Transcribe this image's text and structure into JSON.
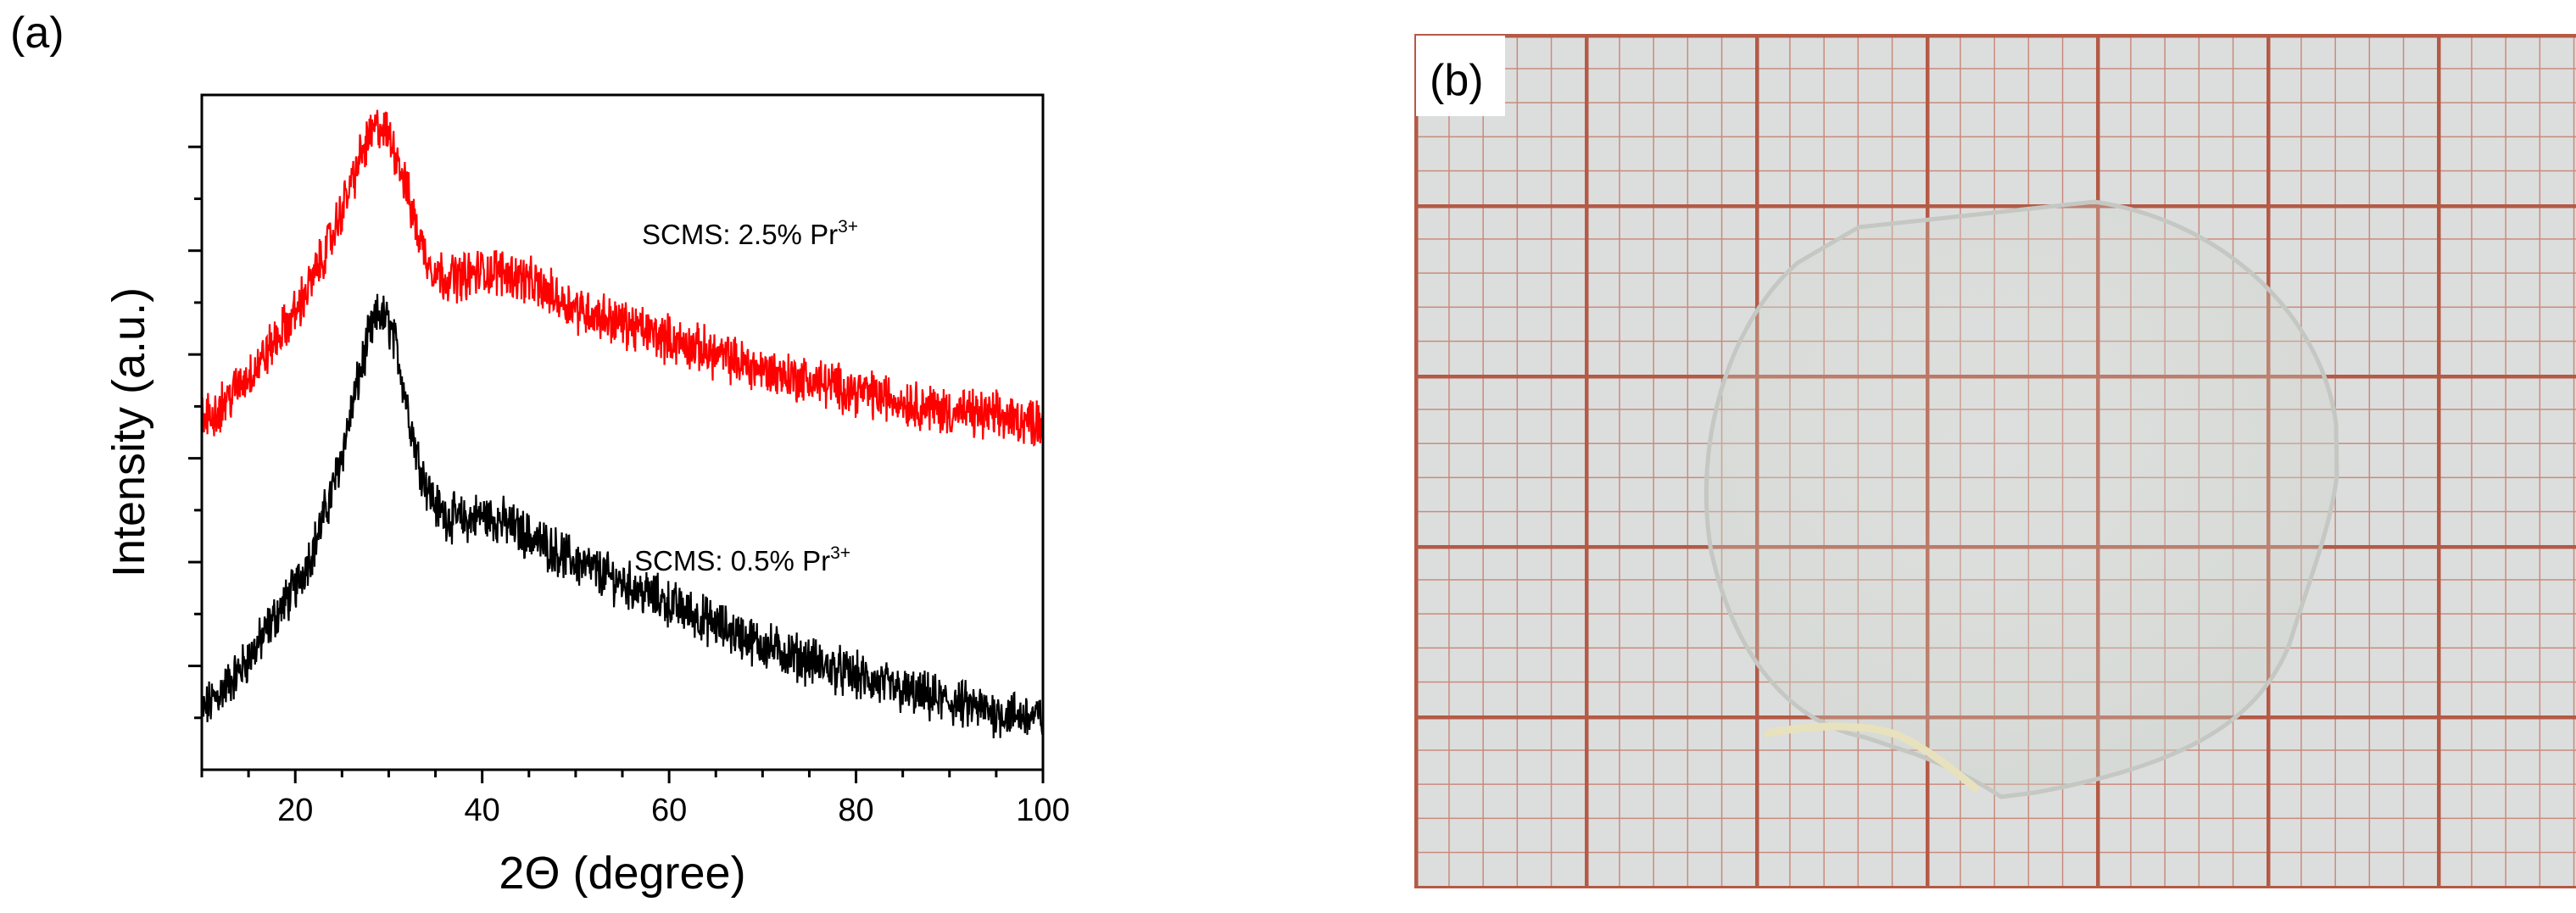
{
  "panel_a": {
    "label": "(a)",
    "chart_data": {
      "type": "line",
      "xlabel": "2Θ (degree)",
      "ylabel": "Intensity (a.u.)",
      "xlim": [
        10,
        100
      ],
      "ylim": [
        0,
        13
      ],
      "x_ticks": [
        20,
        40,
        60,
        80,
        100
      ],
      "x_tick_labels": [
        "20",
        "40",
        "60",
        "80",
        "100"
      ],
      "y_tick_labels_shown": false,
      "grid": false,
      "series": [
        {
          "name": "SCMS: 0.5% Pr3+",
          "color": "#000000",
          "annotation_main": "SCMS: 0.5% Pr",
          "annotation_sup": "3+",
          "x": [
            10,
            12,
            14,
            16,
            18,
            20,
            22,
            24,
            25,
            26,
            27,
            28,
            29,
            30,
            31,
            32,
            33,
            34,
            35,
            36,
            38,
            40,
            42,
            44,
            46,
            48,
            50,
            55,
            60,
            65,
            70,
            75,
            80,
            85,
            90,
            95,
            100
          ],
          "y": [
            1.1,
            1.5,
            1.9,
            2.4,
            3.0,
            3.5,
            4.3,
            5.4,
            6.1,
            6.9,
            7.7,
            8.4,
            8.8,
            8.6,
            8.0,
            7.0,
            6.1,
            5.5,
            5.1,
            4.9,
            4.8,
            4.9,
            4.8,
            4.6,
            4.4,
            4.2,
            4.0,
            3.6,
            3.2,
            2.8,
            2.4,
            2.1,
            1.8,
            1.5,
            1.3,
            1.1,
            1.0
          ]
        },
        {
          "name": "SCMS: 2.5% Pr3+",
          "color": "#ff0000",
          "annotation_main": "SCMS: 2.5% Pr",
          "annotation_sup": "3+",
          "x": [
            10,
            12,
            14,
            16,
            18,
            20,
            22,
            24,
            25,
            26,
            27,
            28,
            29,
            30,
            31,
            32,
            33,
            34,
            35,
            36,
            38,
            40,
            42,
            44,
            46,
            48,
            50,
            55,
            60,
            65,
            70,
            75,
            80,
            85,
            90,
            95,
            100
          ],
          "y": [
            6.7,
            7.0,
            7.4,
            7.8,
            8.3,
            8.8,
            9.5,
            10.3,
            10.8,
            11.3,
            11.8,
            12.2,
            12.4,
            12.2,
            11.8,
            11.1,
            10.4,
            9.9,
            9.6,
            9.5,
            9.5,
            9.6,
            9.6,
            9.5,
            9.3,
            9.1,
            8.9,
            8.6,
            8.3,
            8.0,
            7.7,
            7.5,
            7.3,
            7.1,
            6.9,
            6.8,
            6.7
          ]
        }
      ]
    }
  },
  "panel_b": {
    "label": "(b)"
  }
}
